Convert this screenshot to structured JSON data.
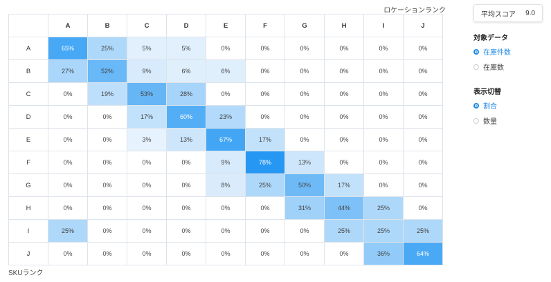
{
  "labels": {
    "location_rank": "ロケーションランク",
    "sku_rank": "SKUランク"
  },
  "score": {
    "label": "平均スコア",
    "value": "9.0"
  },
  "target_data": {
    "title": "対象データ",
    "options": [
      {
        "label": "在庫件数",
        "selected": true
      },
      {
        "label": "在庫数",
        "selected": false
      }
    ]
  },
  "display_mode": {
    "title": "表示切替",
    "options": [
      {
        "label": "割合",
        "selected": true
      },
      {
        "label": "数量",
        "selected": false
      }
    ]
  },
  "colors": {
    "accent": "#1e88e5",
    "heat_max": "#2196f3",
    "heat_min": "#eef6fd"
  },
  "matrix": {
    "columns": [
      "A",
      "B",
      "C",
      "D",
      "E",
      "F",
      "G",
      "H",
      "I",
      "J"
    ],
    "rows": [
      {
        "label": "A",
        "cells": [
          "65%",
          "25%",
          "5%",
          "5%",
          "0%",
          "0%",
          "0%",
          "0%",
          "0%",
          "0%"
        ]
      },
      {
        "label": "B",
        "cells": [
          "27%",
          "52%",
          "9%",
          "6%",
          "6%",
          "0%",
          "0%",
          "0%",
          "0%",
          "0%"
        ]
      },
      {
        "label": "C",
        "cells": [
          "0%",
          "19%",
          "53%",
          "28%",
          "0%",
          "0%",
          "0%",
          "0%",
          "0%",
          "0%"
        ]
      },
      {
        "label": "D",
        "cells": [
          "0%",
          "0%",
          "17%",
          "60%",
          "23%",
          "0%",
          "0%",
          "0%",
          "0%",
          "0%"
        ]
      },
      {
        "label": "E",
        "cells": [
          "0%",
          "0%",
          "3%",
          "13%",
          "67%",
          "17%",
          "0%",
          "0%",
          "0%",
          "0%"
        ]
      },
      {
        "label": "F",
        "cells": [
          "0%",
          "0%",
          "0%",
          "0%",
          "9%",
          "78%",
          "13%",
          "0%",
          "0%",
          "0%"
        ]
      },
      {
        "label": "G",
        "cells": [
          "0%",
          "0%",
          "0%",
          "0%",
          "8%",
          "25%",
          "50%",
          "17%",
          "0%",
          "0%"
        ]
      },
      {
        "label": "H",
        "cells": [
          "0%",
          "0%",
          "0%",
          "0%",
          "0%",
          "0%",
          "31%",
          "44%",
          "25%",
          "0%"
        ]
      },
      {
        "label": "I",
        "cells": [
          "25%",
          "0%",
          "0%",
          "0%",
          "0%",
          "0%",
          "0%",
          "25%",
          "25%",
          "25%"
        ]
      },
      {
        "label": "J",
        "cells": [
          "0%",
          "0%",
          "0%",
          "0%",
          "0%",
          "0%",
          "0%",
          "0%",
          "36%",
          "64%"
        ]
      }
    ]
  }
}
